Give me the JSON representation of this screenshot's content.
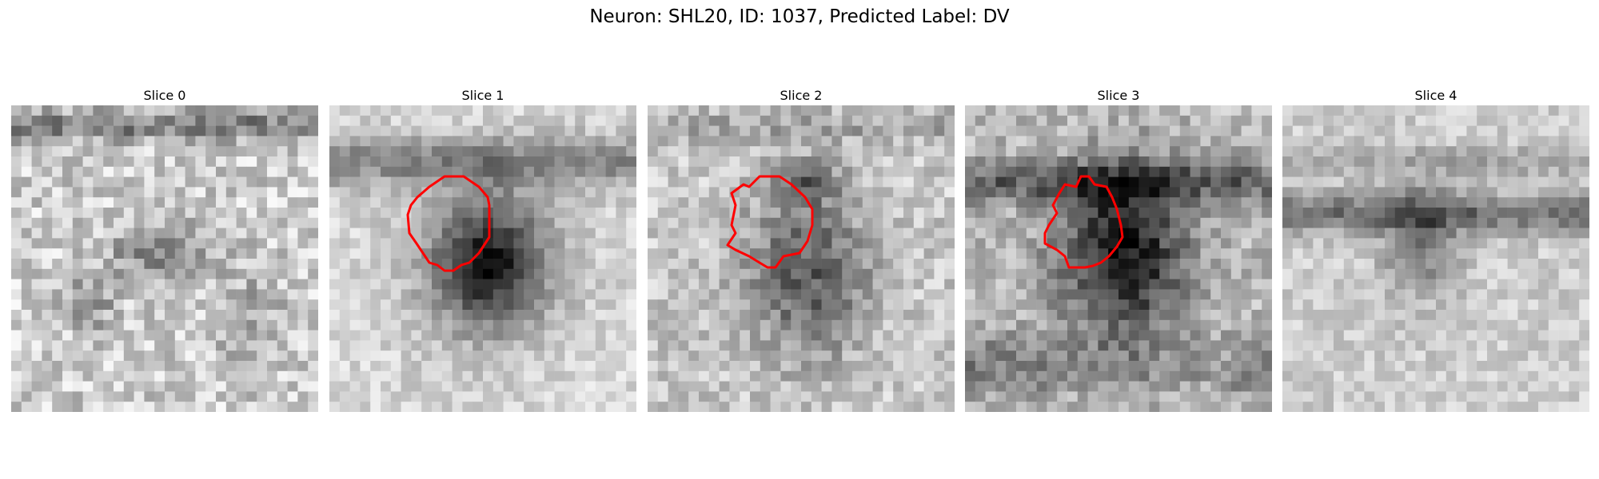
{
  "figure": {
    "title": "Neuron: SHL20, ID: 1037, Predicted Label: DV"
  },
  "colors": {
    "contour": "#ff0000",
    "background": "#ffffff"
  },
  "panels": [
    {
      "title": "Slice 0",
      "has_contour": false
    },
    {
      "title": "Slice 1",
      "has_contour": true
    },
    {
      "title": "Slice 2",
      "has_contour": true
    },
    {
      "title": "Slice 3",
      "has_contour": true
    },
    {
      "title": "Slice 4",
      "has_contour": false
    }
  ]
}
